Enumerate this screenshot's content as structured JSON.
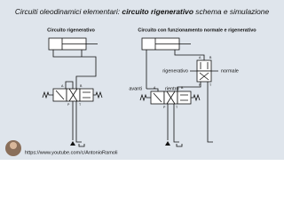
{
  "header": {
    "title_prefix": "Circuiti oleodinamici elementari: ",
    "title_bold": "circuito rigenerativo",
    "title_suffix": " schema e simulazione"
  },
  "left_diagram": {
    "label": "Circuito rigenerativo",
    "ports": [
      "A",
      "B",
      "P",
      "T"
    ]
  },
  "right_diagram": {
    "label": "Circuito con funzionamento normale e rigenerativo",
    "upper_valve_left": "rigenerativo",
    "upper_valve_right": "normale",
    "lower_valve_left": "avanti",
    "lower_valve_right": "rientro",
    "upper_ports": [
      "A",
      "B",
      "P",
      "T"
    ],
    "lower_ports": [
      "A",
      "B",
      "P",
      "T"
    ]
  },
  "footer": {
    "url": "https://www.youtube.com/c/AntonioRamoli"
  }
}
